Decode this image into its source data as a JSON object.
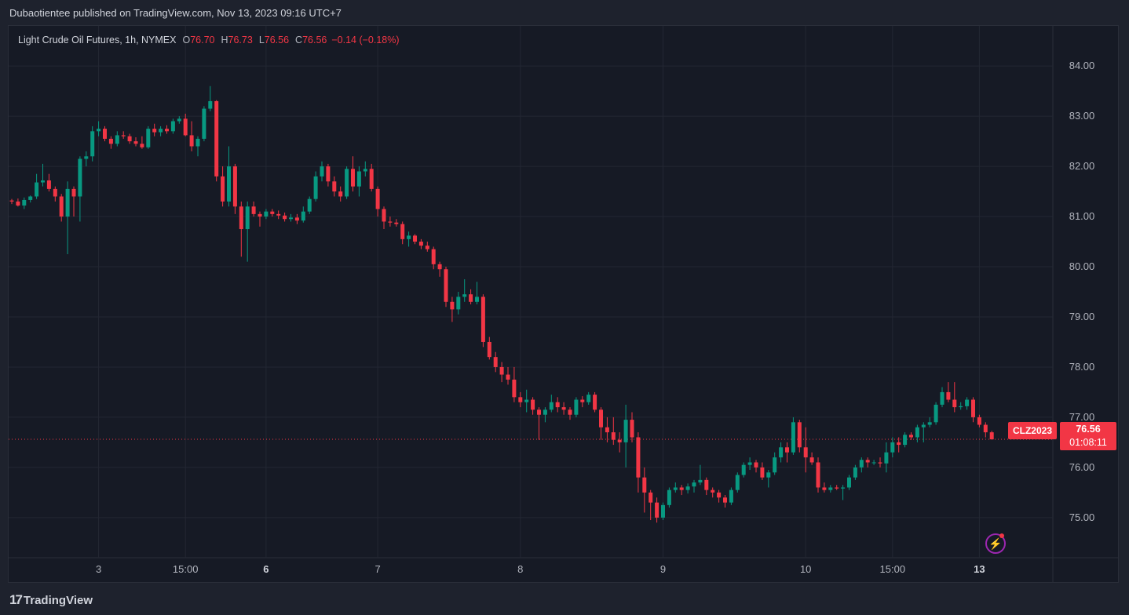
{
  "header": {
    "published_text": "Dubaotientee published on TradingView.com, Nov 13, 2023 09:16 UTC+7"
  },
  "legend": {
    "name": "Light Crude Oil Futures, 1h, NYMEX",
    "o_label": "O",
    "o_value": "76.70",
    "h_label": "H",
    "h_value": "76.73",
    "l_label": "L",
    "l_value": "76.56",
    "c_label": "C",
    "c_value": "76.56",
    "change": "−0.14 (−0.18%)"
  },
  "price_scale": {
    "symbol": "CLZ2023",
    "last_price": "76.56",
    "countdown": "01:08:11"
  },
  "footer": {
    "brand": "TradingView",
    "logo_glyph": "17"
  },
  "colors": {
    "up": "#089981",
    "down": "#f23645",
    "background": "#161a25",
    "grid": "#232733",
    "text": "#b2b5be"
  },
  "icons": {
    "bolt": "lightning-bolt-icon"
  },
  "chart_data": {
    "type": "candlestick",
    "title": "Light Crude Oil Futures, 1h, NYMEX",
    "ylim": [
      74.2,
      84.8
    ],
    "yticks": [
      "84.00",
      "83.00",
      "82.00",
      "81.00",
      "80.00",
      "79.00",
      "78.00",
      "77.00",
      "76.00",
      "75.00"
    ],
    "xticks": [
      {
        "label": "3",
        "index": 14,
        "bold": false
      },
      {
        "label": "15:00",
        "index": 28,
        "bold": false
      },
      {
        "label": "6",
        "index": 41,
        "bold": true
      },
      {
        "label": "7",
        "index": 59,
        "bold": false
      },
      {
        "label": "8",
        "index": 82,
        "bold": false
      },
      {
        "label": "9",
        "index": 105,
        "bold": false
      },
      {
        "label": "10",
        "index": 128,
        "bold": false
      },
      {
        "label": "15:00",
        "index": 142,
        "bold": false
      },
      {
        "label": "13",
        "index": 156,
        "bold": true
      }
    ],
    "last_price": 76.56,
    "ohlc": [
      [
        81.32,
        81.35,
        81.25,
        81.3
      ],
      [
        81.3,
        81.36,
        81.2,
        81.22
      ],
      [
        81.22,
        81.38,
        81.15,
        81.33
      ],
      [
        81.33,
        81.42,
        81.28,
        81.4
      ],
      [
        81.4,
        81.85,
        81.35,
        81.68
      ],
      [
        81.68,
        82.05,
        81.6,
        81.72
      ],
      [
        81.72,
        81.85,
        81.5,
        81.55
      ],
      [
        81.55,
        81.6,
        81.3,
        81.4
      ],
      [
        81.4,
        81.45,
        80.9,
        81.0
      ],
      [
        81.0,
        81.7,
        80.25,
        81.55
      ],
      [
        81.55,
        81.6,
        81.0,
        81.4
      ],
      [
        81.4,
        82.2,
        80.9,
        82.15
      ],
      [
        82.15,
        82.3,
        82.0,
        82.2
      ],
      [
        82.2,
        82.8,
        82.1,
        82.7
      ],
      [
        82.7,
        82.9,
        82.6,
        82.75
      ],
      [
        82.75,
        82.8,
        82.5,
        82.55
      ],
      [
        82.55,
        82.6,
        82.35,
        82.45
      ],
      [
        82.45,
        82.7,
        82.4,
        82.62
      ],
      [
        82.62,
        82.7,
        82.55,
        82.6
      ],
      [
        82.6,
        82.65,
        82.45,
        82.5
      ],
      [
        82.5,
        82.58,
        82.4,
        82.45
      ],
      [
        82.45,
        82.6,
        82.35,
        82.38
      ],
      [
        82.38,
        82.8,
        82.35,
        82.75
      ],
      [
        82.75,
        82.85,
        82.6,
        82.68
      ],
      [
        82.68,
        82.8,
        82.6,
        82.75
      ],
      [
        82.75,
        82.82,
        82.65,
        82.7
      ],
      [
        82.7,
        82.95,
        82.65,
        82.9
      ],
      [
        82.9,
        83.0,
        82.85,
        82.95
      ],
      [
        82.95,
        83.05,
        82.6,
        82.62
      ],
      [
        82.62,
        82.9,
        82.3,
        82.4
      ],
      [
        82.4,
        82.6,
        82.2,
        82.55
      ],
      [
        82.55,
        83.2,
        82.5,
        83.15
      ],
      [
        83.15,
        83.6,
        83.1,
        83.3
      ],
      [
        83.3,
        83.32,
        81.7,
        81.8
      ],
      [
        81.8,
        82.0,
        81.2,
        81.3
      ],
      [
        81.3,
        82.4,
        81.2,
        82.0
      ],
      [
        82.0,
        82.05,
        81.05,
        81.2
      ],
      [
        81.2,
        81.3,
        80.2,
        80.75
      ],
      [
        80.75,
        81.3,
        80.1,
        81.2
      ],
      [
        81.2,
        81.3,
        81.0,
        81.05
      ],
      [
        81.05,
        81.1,
        80.8,
        81.0
      ],
      [
        81.0,
        81.15,
        80.95,
        81.1
      ],
      [
        81.1,
        81.15,
        81.0,
        81.05
      ],
      [
        81.05,
        81.12,
        80.95,
        81.02
      ],
      [
        81.02,
        81.08,
        80.9,
        80.95
      ],
      [
        80.95,
        81.05,
        80.9,
        80.98
      ],
      [
        80.98,
        81.05,
        80.85,
        80.92
      ],
      [
        80.92,
        81.2,
        80.88,
        81.1
      ],
      [
        81.1,
        81.4,
        81.05,
        81.35
      ],
      [
        81.35,
        81.9,
        81.3,
        81.8
      ],
      [
        81.8,
        82.1,
        81.7,
        82.0
      ],
      [
        82.0,
        82.05,
        81.6,
        81.7
      ],
      [
        81.7,
        81.8,
        81.4,
        81.5
      ],
      [
        81.5,
        81.6,
        81.3,
        81.4
      ],
      [
        81.4,
        82.0,
        81.35,
        81.95
      ],
      [
        81.95,
        82.2,
        81.5,
        81.6
      ],
      [
        81.6,
        82.0,
        81.4,
        81.9
      ],
      [
        81.9,
        82.1,
        81.8,
        81.95
      ],
      [
        81.95,
        82.05,
        81.5,
        81.55
      ],
      [
        81.55,
        81.6,
        81.0,
        81.15
      ],
      [
        81.15,
        81.2,
        80.75,
        80.9
      ],
      [
        80.9,
        81.0,
        80.8,
        80.88
      ],
      [
        80.88,
        80.95,
        80.8,
        80.85
      ],
      [
        80.85,
        80.9,
        80.45,
        80.55
      ],
      [
        80.55,
        80.7,
        80.4,
        80.62
      ],
      [
        80.62,
        80.65,
        80.45,
        80.5
      ],
      [
        80.5,
        80.55,
        80.35,
        80.42
      ],
      [
        80.42,
        80.5,
        80.3,
        80.35
      ],
      [
        80.35,
        80.4,
        79.95,
        80.05
      ],
      [
        80.05,
        80.1,
        79.8,
        79.95
      ],
      [
        79.95,
        80.0,
        79.2,
        79.3
      ],
      [
        79.3,
        79.4,
        78.9,
        79.15
      ],
      [
        79.15,
        79.5,
        79.05,
        79.4
      ],
      [
        79.4,
        79.75,
        79.3,
        79.45
      ],
      [
        79.45,
        79.55,
        79.25,
        79.3
      ],
      [
        79.3,
        79.7,
        79.25,
        79.4
      ],
      [
        79.4,
        79.45,
        78.4,
        78.5
      ],
      [
        78.5,
        78.6,
        78.15,
        78.2
      ],
      [
        78.2,
        78.3,
        77.9,
        78.0
      ],
      [
        78.0,
        78.1,
        77.7,
        77.85
      ],
      [
        77.85,
        78.0,
        77.65,
        77.75
      ],
      [
        77.75,
        78.0,
        77.3,
        77.4
      ],
      [
        77.4,
        77.5,
        77.2,
        77.3
      ],
      [
        77.3,
        77.55,
        77.1,
        77.35
      ],
      [
        77.35,
        77.4,
        77.05,
        77.15
      ],
      [
        77.15,
        77.2,
        76.55,
        77.05
      ],
      [
        77.05,
        77.2,
        76.9,
        77.15
      ],
      [
        77.15,
        77.45,
        77.1,
        77.3
      ],
      [
        77.3,
        77.4,
        77.1,
        77.2
      ],
      [
        77.2,
        77.3,
        77.05,
        77.15
      ],
      [
        77.15,
        77.2,
        76.95,
        77.05
      ],
      [
        77.05,
        77.4,
        77.0,
        77.35
      ],
      [
        77.35,
        77.42,
        77.2,
        77.3
      ],
      [
        77.3,
        77.5,
        77.25,
        77.45
      ],
      [
        77.45,
        77.5,
        77.1,
        77.15
      ],
      [
        77.15,
        77.2,
        76.55,
        76.8
      ],
      [
        76.8,
        77.0,
        76.5,
        76.7
      ],
      [
        76.7,
        77.0,
        76.45,
        76.55
      ],
      [
        76.55,
        76.7,
        76.3,
        76.5
      ],
      [
        76.5,
        77.25,
        76.0,
        76.95
      ],
      [
        76.95,
        77.1,
        76.5,
        76.6
      ],
      [
        76.6,
        76.7,
        75.5,
        75.8
      ],
      [
        75.8,
        76.0,
        75.1,
        75.5
      ],
      [
        75.5,
        75.55,
        74.95,
        75.3
      ],
      [
        75.3,
        75.4,
        74.9,
        75.0
      ],
      [
        75.0,
        75.3,
        74.95,
        75.25
      ],
      [
        75.25,
        75.6,
        75.2,
        75.55
      ],
      [
        75.55,
        75.7,
        75.5,
        75.6
      ],
      [
        75.6,
        75.65,
        75.45,
        75.55
      ],
      [
        75.55,
        75.68,
        75.48,
        75.62
      ],
      [
        75.62,
        75.75,
        75.5,
        75.7
      ],
      [
        75.7,
        76.05,
        75.65,
        75.75
      ],
      [
        75.75,
        75.8,
        75.45,
        75.55
      ],
      [
        75.55,
        75.6,
        75.4,
        75.5
      ],
      [
        75.5,
        75.55,
        75.3,
        75.4
      ],
      [
        75.4,
        75.45,
        75.2,
        75.3
      ],
      [
        75.3,
        75.6,
        75.25,
        75.55
      ],
      [
        75.55,
        75.9,
        75.5,
        75.85
      ],
      [
        75.85,
        76.1,
        75.8,
        76.05
      ],
      [
        76.05,
        76.2,
        75.95,
        76.1
      ],
      [
        76.1,
        76.15,
        75.9,
        76.0
      ],
      [
        76.0,
        76.1,
        75.75,
        75.8
      ],
      [
        75.8,
        75.95,
        75.6,
        75.9
      ],
      [
        75.9,
        76.3,
        75.85,
        76.2
      ],
      [
        76.2,
        76.5,
        76.1,
        76.4
      ],
      [
        76.4,
        76.5,
        76.1,
        76.3
      ],
      [
        76.3,
        77.0,
        76.25,
        76.9
      ],
      [
        76.9,
        76.95,
        76.3,
        76.4
      ],
      [
        76.4,
        76.8,
        75.9,
        76.2
      ],
      [
        76.2,
        76.3,
        76.05,
        76.1
      ],
      [
        76.1,
        76.2,
        75.5,
        75.6
      ],
      [
        75.6,
        75.7,
        75.5,
        75.55
      ],
      [
        75.55,
        75.65,
        75.5,
        75.6
      ],
      [
        75.6,
        75.65,
        75.55,
        75.58
      ],
      [
        75.58,
        75.65,
        75.35,
        75.6
      ],
      [
        75.6,
        75.85,
        75.55,
        75.8
      ],
      [
        75.8,
        76.05,
        75.75,
        76.0
      ],
      [
        76.0,
        76.2,
        75.9,
        76.15
      ],
      [
        76.15,
        76.2,
        76.0,
        76.1
      ],
      [
        76.1,
        76.15,
        76.05,
        76.1
      ],
      [
        76.1,
        76.2,
        76.0,
        76.08
      ],
      [
        76.08,
        76.5,
        75.9,
        76.3
      ],
      [
        76.3,
        76.6,
        76.2,
        76.5
      ],
      [
        76.5,
        76.6,
        76.3,
        76.45
      ],
      [
        76.45,
        76.7,
        76.4,
        76.65
      ],
      [
        76.65,
        76.7,
        76.55,
        76.6
      ],
      [
        76.6,
        76.85,
        76.5,
        76.8
      ],
      [
        76.8,
        76.9,
        76.5,
        76.85
      ],
      [
        76.85,
        77.0,
        76.8,
        76.9
      ],
      [
        76.9,
        77.3,
        76.85,
        77.25
      ],
      [
        77.25,
        77.6,
        77.2,
        77.5
      ],
      [
        77.5,
        77.7,
        77.3,
        77.35
      ],
      [
        77.35,
        77.7,
        77.1,
        77.2
      ],
      [
        77.2,
        77.3,
        77.15,
        77.22
      ],
      [
        77.22,
        77.4,
        77.15,
        77.35
      ],
      [
        77.35,
        77.4,
        76.9,
        77.0
      ],
      [
        77.0,
        77.05,
        76.8,
        76.85
      ],
      [
        76.85,
        76.9,
        76.6,
        76.7
      ],
      [
        76.7,
        76.73,
        76.56,
        76.56
      ]
    ]
  }
}
